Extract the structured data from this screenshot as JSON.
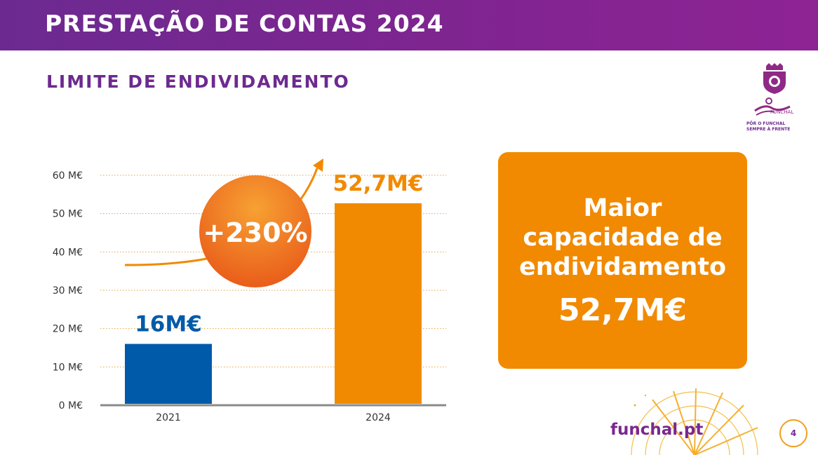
{
  "header": {
    "title": "PRESTAÇÃO DE CONTAS 2024"
  },
  "section": {
    "title": "LIMITE DE ENDIVIDAMENTO"
  },
  "logo": {
    "slogan": "PÔR O FUNCHAL\nSEMPRE À FRENTE",
    "wordmark": "FUNCHAL"
  },
  "chart_data": {
    "type": "bar",
    "categories": [
      "2021",
      "2024"
    ],
    "values": [
      16,
      52.7
    ],
    "data_labels": [
      "16M€",
      "52,7M€"
    ],
    "bar_colors": [
      "#005aaa",
      "#f18a00"
    ],
    "ylim": [
      0,
      60
    ],
    "yticks": [
      0,
      10,
      20,
      30,
      40,
      50,
      60
    ],
    "ytick_labels": [
      "0 M€",
      "10 M€",
      "20 M€",
      "30 M€",
      "40 M€",
      "50 M€",
      "60 M€"
    ],
    "grid": true,
    "annotation": "+230%"
  },
  "info_box": {
    "text": "Maior capacidade de endividamento",
    "value": "52,7M€"
  },
  "footer": {
    "site": "funchal.pt",
    "page": "4"
  },
  "colors": {
    "purple": "#7a2790",
    "orange": "#f18a00",
    "blue": "#005aaa"
  }
}
